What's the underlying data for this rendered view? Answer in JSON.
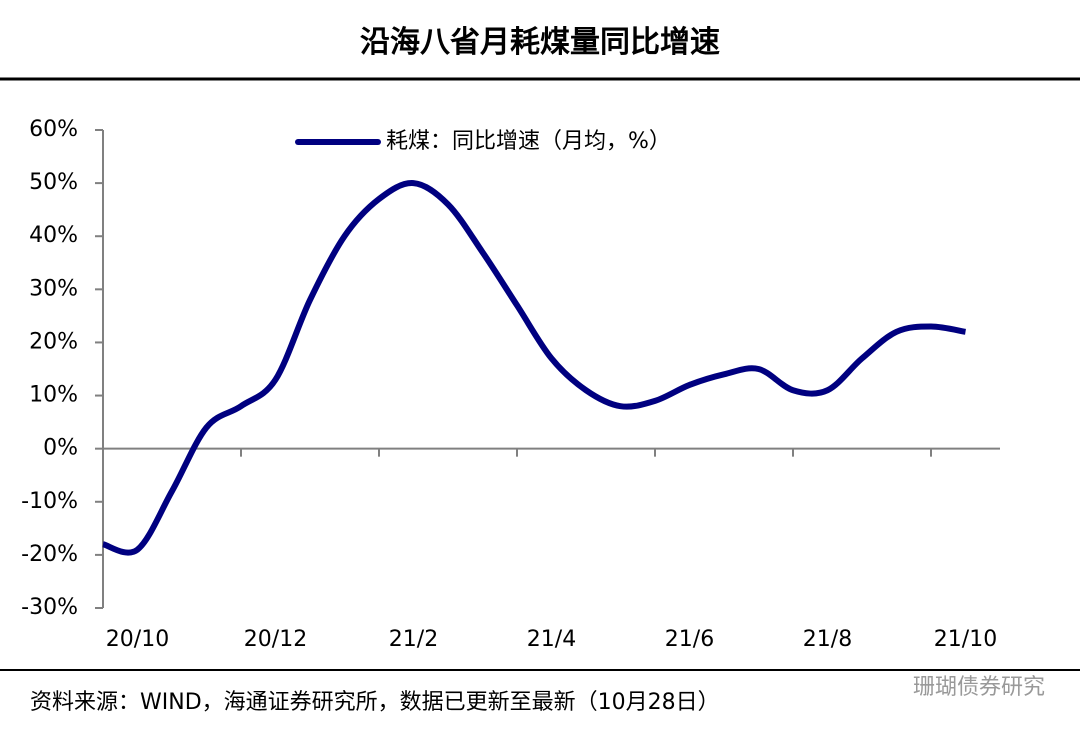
{
  "chart_data": {
    "type": "line",
    "title": "沿海八省月耗煤量同比增速",
    "categories": [
      null,
      "20/10",
      null,
      null,
      null,
      "20/12",
      null,
      null,
      null,
      "21/2",
      null,
      null,
      null,
      "21/4",
      null,
      null,
      null,
      "21/6",
      null,
      null,
      null,
      "21/8",
      null,
      null,
      null,
      "21/10"
    ],
    "series": [
      {
        "name": "耗煤：同比增速（月均，%）",
        "color": "#000080",
        "values": [
          -18,
          -19,
          -8,
          4,
          8,
          13,
          28,
          40,
          47,
          50,
          46,
          37,
          27,
          17,
          11,
          8,
          9,
          12,
          14,
          15,
          11,
          11,
          17,
          22,
          23,
          22
        ]
      }
    ],
    "ylim": [
      -30,
      60
    ],
    "yticks": [
      {
        "value": -30,
        "label": "-30%"
      },
      {
        "value": -20,
        "label": "-20%"
      },
      {
        "value": -10,
        "label": "-10%"
      },
      {
        "value": 0,
        "label": "0%"
      },
      {
        "value": 10,
        "label": "10%"
      },
      {
        "value": 20,
        "label": "20%"
      },
      {
        "value": 30,
        "label": "30%"
      },
      {
        "value": 40,
        "label": "40%"
      },
      {
        "value": 50,
        "label": "50%"
      },
      {
        "value": 60,
        "label": "60%"
      }
    ],
    "legend": "top",
    "source": "资料来源：WIND，海通证券研究所，数据已更新至最新（10月28日）",
    "watermark": "珊瑚债券研究"
  }
}
